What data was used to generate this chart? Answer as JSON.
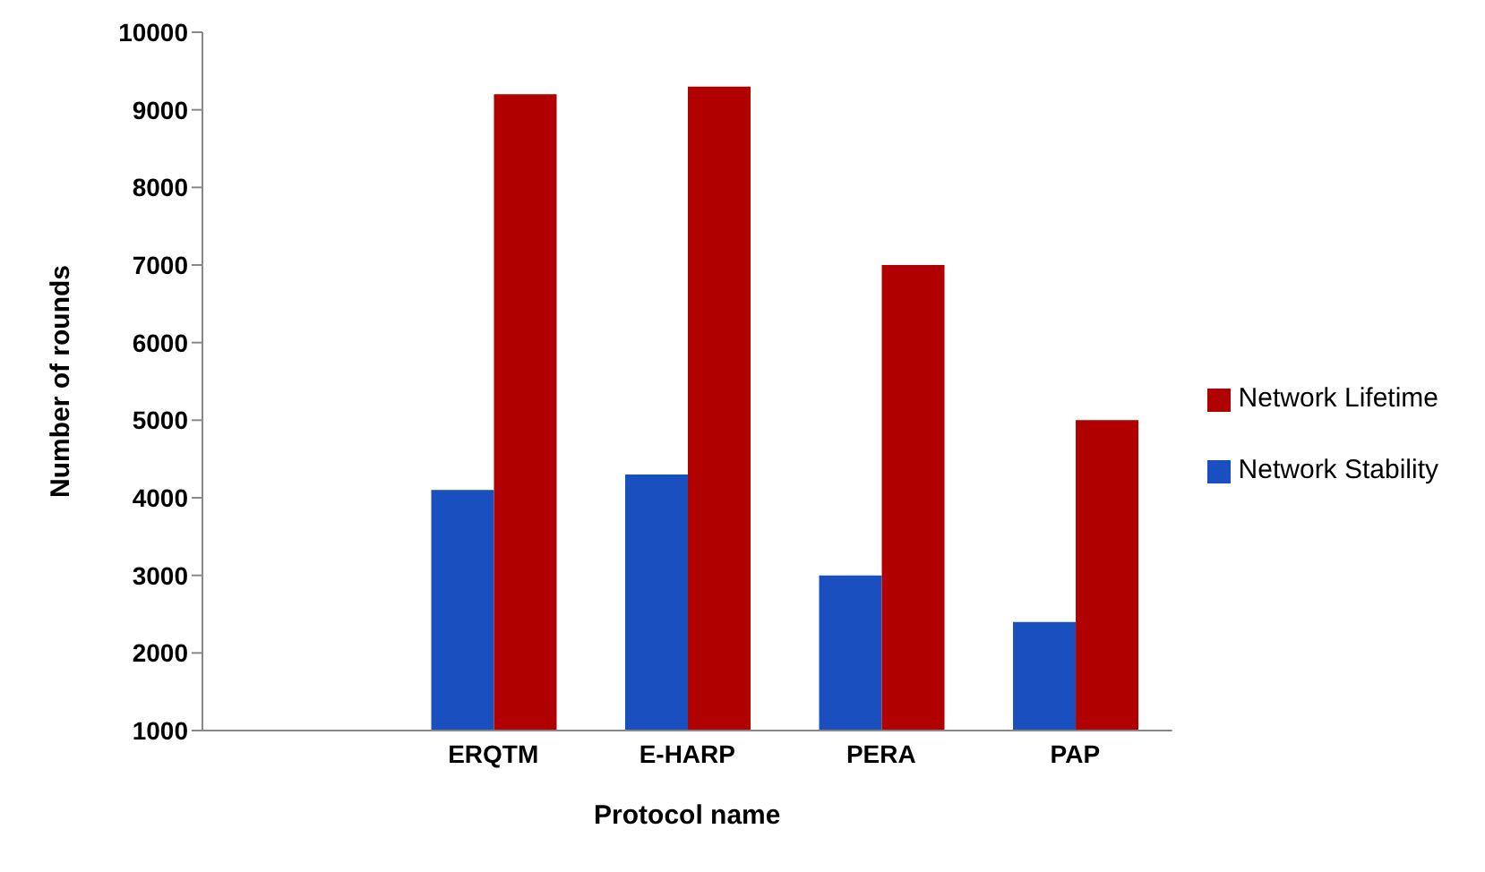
{
  "chart_data": {
    "type": "bar",
    "xlabel": "Protocol name",
    "ylabel": "Number of rounds",
    "categories": [
      null,
      "ERQTM",
      "E-HARP",
      "PERA",
      "PAP"
    ],
    "series": [
      {
        "name": "Network Stability",
        "color": "#1a4fc0",
        "values": [
          null,
          4100,
          4300,
          3000,
          2400
        ]
      },
      {
        "name": "Network Lifetime",
        "color": "#b00000",
        "values": [
          null,
          9200,
          9300,
          7000,
          5000
        ]
      }
    ],
    "ylim": [
      1000,
      10000
    ],
    "yticks": [
      1000,
      2000,
      3000,
      4000,
      5000,
      6000,
      7000,
      8000,
      9000,
      10000
    ],
    "legend": "right"
  }
}
